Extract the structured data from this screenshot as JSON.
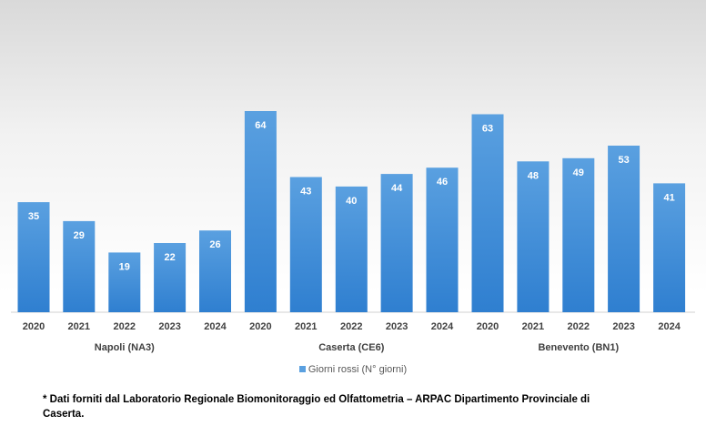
{
  "chart_data": {
    "type": "bar",
    "groups": [
      {
        "name": "Napoli (NA3)",
        "categories": [
          "2020",
          "2021",
          "2022",
          "2023",
          "2024"
        ],
        "values": [
          35,
          29,
          19,
          22,
          26
        ]
      },
      {
        "name": "Caserta (CE6)",
        "categories": [
          "2020",
          "2021",
          "2022",
          "2023",
          "2024"
        ],
        "values": [
          64,
          43,
          40,
          44,
          46
        ]
      },
      {
        "name": "Benevento (BN1)",
        "categories": [
          "2020",
          "2021",
          "2022",
          "2023",
          "2024"
        ],
        "values": [
          63,
          48,
          49,
          53,
          41
        ]
      }
    ],
    "series": [
      {
        "name": "Giorni rossi (N° giorni)"
      }
    ],
    "ylim": [
      0,
      70
    ],
    "grid": false,
    "legend_position": "bottom",
    "colors": {
      "bar_top": "#5aa0e0",
      "bar_bottom": "#2f7fd0",
      "label": "#404040"
    }
  },
  "footnote": "* Dati forniti dal Laboratorio Regionale Biomonitoraggio ed Olfattometria – ARPAC Dipartimento Provinciale di Caserta."
}
